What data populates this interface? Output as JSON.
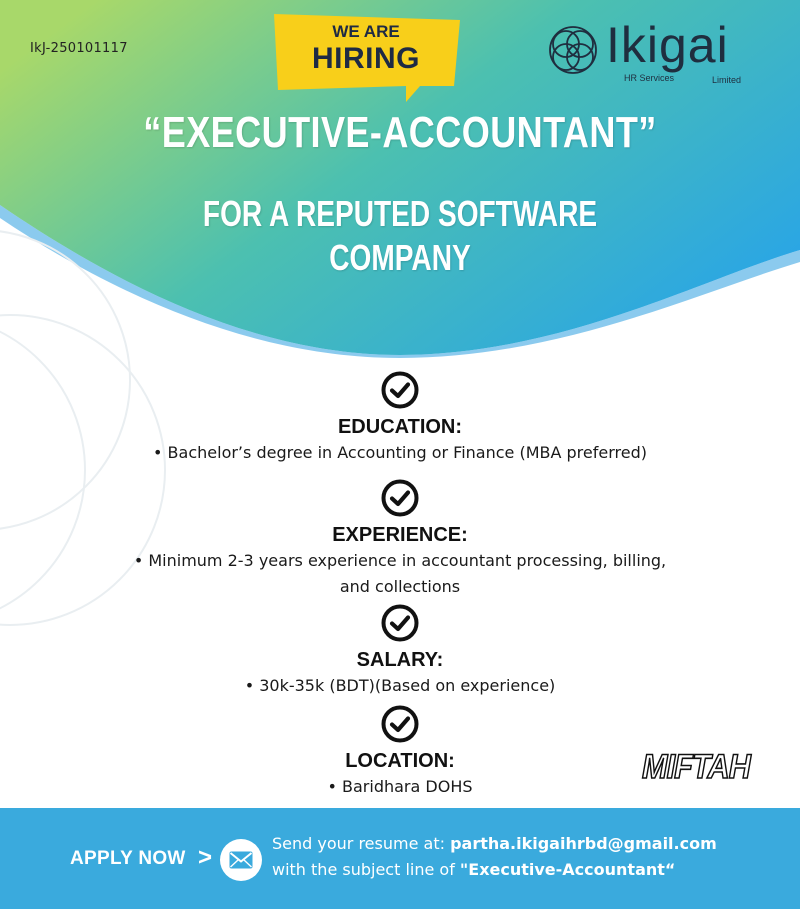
{
  "header": {
    "ref_code": "IkJ-250101117",
    "hiring_line1": "WE ARE",
    "hiring_line2": "HIRING"
  },
  "logo": {
    "name": "Ikigai",
    "sub_left": "HR Services",
    "sub_right": "Limited"
  },
  "title": "“EXECUTIVE-ACCOUNTANT”",
  "subtitle_line1": "FOR A REPUTED SOFTWARE",
  "subtitle_line2": "COMPANY",
  "sections": [
    {
      "icon": "check-circle-icon",
      "heading": "EDUCATION:",
      "lines": [
        "• Bachelor’s degree in Accounting or Finance (MBA preferred)"
      ]
    },
    {
      "icon": "check-circle-icon",
      "heading": "EXPERIENCE:",
      "lines": [
        "• Minimum 2-3 years experience in accountant processing, billing,",
        "and collections"
      ]
    },
    {
      "icon": "check-circle-icon",
      "heading": "SALARY:",
      "lines": [
        "• 30k-35k (BDT)(Based on experience)"
      ]
    },
    {
      "icon": "check-circle-icon",
      "heading": "LOCATION:",
      "lines": [
        "• Baridhara DOHS"
      ]
    }
  ],
  "watermark": "MIFTAH",
  "footer": {
    "apply_label": "APPLY NOW",
    "arrow": ">",
    "line1_prefix": "Send your resume at: ",
    "email": "partha.ikigaihrbd@gmail.com",
    "line2_prefix": "with the subject line of ",
    "subject": "\"Executive-Accountant“"
  },
  "colors": {
    "gradient_start": "#a8d86a",
    "gradient_mid": "#4cc0b0",
    "gradient_end": "#28a4e8",
    "footer_blue": "#3aaadd",
    "badge_yellow": "#f8cf1a",
    "text_dark": "#111111"
  }
}
